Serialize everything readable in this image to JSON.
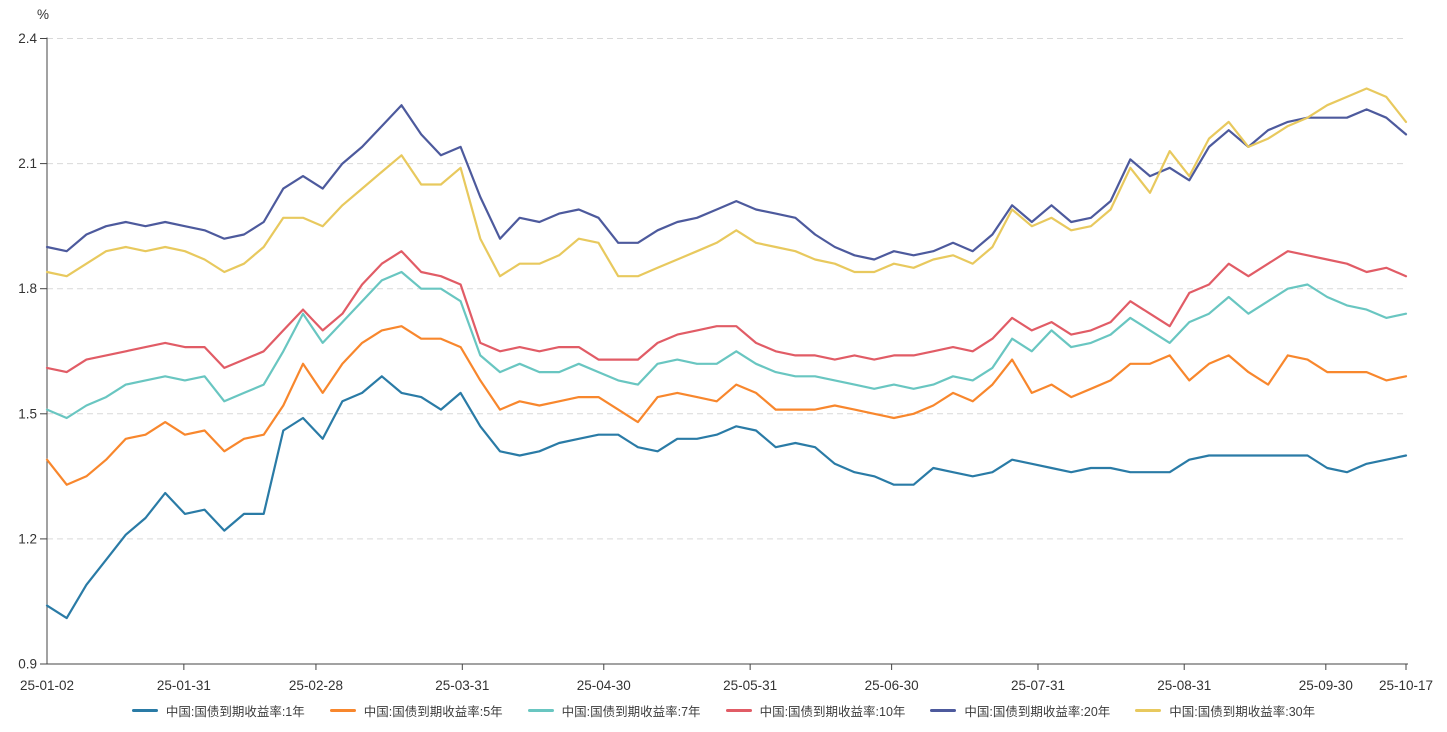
{
  "chart_data": {
    "type": "line",
    "title": "",
    "y_unit": "%",
    "ylim": [
      0.9,
      2.4
    ],
    "y_ticks": [
      "0.9",
      "1.2",
      "1.5",
      "1.8",
      "2.1",
      "2.4"
    ],
    "y_tick_values": [
      0.9,
      1.2,
      1.5,
      1.8,
      2.1,
      2.4
    ],
    "x_tick_labels": [
      "25-01-02",
      "25-01-31",
      "25-02-28",
      "25-03-31",
      "25-04-30",
      "25-05-31",
      "25-06-30",
      "25-07-31",
      "25-08-31",
      "25-09-30",
      "25-10-17"
    ],
    "x_tick_positions": [
      0,
      0.1007,
      0.1979,
      0.3056,
      0.4097,
      0.5174,
      0.6215,
      0.7292,
      0.8368,
      0.941,
      1.0
    ],
    "grid": "horizontal-dashed",
    "legend_position": "bottom",
    "style": {
      "axis_color": "#444444",
      "grid_color": "#d9d9d9",
      "tick_text_color": "#333333",
      "background": "#ffffff"
    },
    "series": [
      {
        "name": "中国:国债到期收益率:1年",
        "color": "#2a7ba6",
        "values": [
          1.04,
          1.01,
          1.09,
          1.15,
          1.21,
          1.25,
          1.31,
          1.26,
          1.27,
          1.22,
          1.26,
          1.26,
          1.46,
          1.49,
          1.44,
          1.53,
          1.55,
          1.59,
          1.55,
          1.54,
          1.51,
          1.55,
          1.47,
          1.41,
          1.4,
          1.41,
          1.43,
          1.44,
          1.45,
          1.45,
          1.42,
          1.41,
          1.44,
          1.44,
          1.45,
          1.47,
          1.46,
          1.42,
          1.43,
          1.42,
          1.38,
          1.36,
          1.35,
          1.33,
          1.33,
          1.37,
          1.36,
          1.35,
          1.36,
          1.39,
          1.38,
          1.37,
          1.36,
          1.37,
          1.37,
          1.36,
          1.36,
          1.36,
          1.39,
          1.4,
          1.4,
          1.4,
          1.4,
          1.4,
          1.4,
          1.37,
          1.36,
          1.38,
          1.39,
          1.4
        ]
      },
      {
        "name": "中国:国债到期收益率:5年",
        "color": "#f8872d",
        "values": [
          1.39,
          1.33,
          1.35,
          1.39,
          1.44,
          1.45,
          1.48,
          1.45,
          1.46,
          1.41,
          1.44,
          1.45,
          1.52,
          1.62,
          1.55,
          1.62,
          1.67,
          1.7,
          1.71,
          1.68,
          1.68,
          1.66,
          1.58,
          1.51,
          1.53,
          1.52,
          1.53,
          1.54,
          1.54,
          1.51,
          1.48,
          1.54,
          1.55,
          1.54,
          1.53,
          1.57,
          1.55,
          1.51,
          1.51,
          1.51,
          1.52,
          1.51,
          1.5,
          1.49,
          1.5,
          1.52,
          1.55,
          1.53,
          1.57,
          1.63,
          1.55,
          1.57,
          1.54,
          1.56,
          1.58,
          1.62,
          1.62,
          1.64,
          1.58,
          1.62,
          1.64,
          1.6,
          1.57,
          1.64,
          1.63,
          1.6,
          1.6,
          1.6,
          1.58,
          1.59
        ]
      },
      {
        "name": "中国:国债到期收益率:7年",
        "color": "#69c6c1",
        "values": [
          1.51,
          1.49,
          1.52,
          1.54,
          1.57,
          1.58,
          1.59,
          1.58,
          1.59,
          1.53,
          1.55,
          1.57,
          1.65,
          1.74,
          1.67,
          1.72,
          1.77,
          1.82,
          1.84,
          1.8,
          1.8,
          1.77,
          1.64,
          1.6,
          1.62,
          1.6,
          1.6,
          1.62,
          1.6,
          1.58,
          1.57,
          1.62,
          1.63,
          1.62,
          1.62,
          1.65,
          1.62,
          1.6,
          1.59,
          1.59,
          1.58,
          1.57,
          1.56,
          1.57,
          1.56,
          1.57,
          1.59,
          1.58,
          1.61,
          1.68,
          1.65,
          1.7,
          1.66,
          1.67,
          1.69,
          1.73,
          1.7,
          1.67,
          1.72,
          1.74,
          1.78,
          1.74,
          1.77,
          1.8,
          1.81,
          1.78,
          1.76,
          1.75,
          1.73,
          1.74
        ]
      },
      {
        "name": "中国:国债到期收益率:10年",
        "color": "#e15c66",
        "values": [
          1.61,
          1.6,
          1.63,
          1.64,
          1.65,
          1.66,
          1.67,
          1.66,
          1.66,
          1.61,
          1.63,
          1.65,
          1.7,
          1.75,
          1.7,
          1.74,
          1.81,
          1.86,
          1.89,
          1.84,
          1.83,
          1.81,
          1.67,
          1.65,
          1.66,
          1.65,
          1.66,
          1.66,
          1.63,
          1.63,
          1.63,
          1.67,
          1.69,
          1.7,
          1.71,
          1.71,
          1.67,
          1.65,
          1.64,
          1.64,
          1.63,
          1.64,
          1.63,
          1.64,
          1.64,
          1.65,
          1.66,
          1.65,
          1.68,
          1.73,
          1.7,
          1.72,
          1.69,
          1.7,
          1.72,
          1.77,
          1.74,
          1.71,
          1.79,
          1.81,
          1.86,
          1.83,
          1.86,
          1.89,
          1.88,
          1.87,
          1.86,
          1.84,
          1.85,
          1.83
        ]
      },
      {
        "name": "中国:国债到期收益率:20年",
        "color": "#4d5a9d",
        "values": [
          1.9,
          1.89,
          1.93,
          1.95,
          1.96,
          1.95,
          1.96,
          1.95,
          1.94,
          1.92,
          1.93,
          1.96,
          2.04,
          2.07,
          2.04,
          2.1,
          2.14,
          2.19,
          2.24,
          2.17,
          2.12,
          2.14,
          2.02,
          1.92,
          1.97,
          1.96,
          1.98,
          1.99,
          1.97,
          1.91,
          1.91,
          1.94,
          1.96,
          1.97,
          1.99,
          2.01,
          1.99,
          1.98,
          1.97,
          1.93,
          1.9,
          1.88,
          1.87,
          1.89,
          1.88,
          1.89,
          1.91,
          1.89,
          1.93,
          2.0,
          1.96,
          2.0,
          1.96,
          1.97,
          2.01,
          2.11,
          2.07,
          2.09,
          2.06,
          2.14,
          2.18,
          2.14,
          2.18,
          2.2,
          2.21,
          2.21,
          2.21,
          2.23,
          2.21,
          2.17
        ]
      },
      {
        "name": "中国:国债到期收益率:30年",
        "color": "#e8c95e",
        "values": [
          1.84,
          1.83,
          1.86,
          1.89,
          1.9,
          1.89,
          1.9,
          1.89,
          1.87,
          1.84,
          1.86,
          1.9,
          1.97,
          1.97,
          1.95,
          2.0,
          2.04,
          2.08,
          2.12,
          2.05,
          2.05,
          2.09,
          1.92,
          1.83,
          1.86,
          1.86,
          1.88,
          1.92,
          1.91,
          1.83,
          1.83,
          1.85,
          1.87,
          1.89,
          1.91,
          1.94,
          1.91,
          1.9,
          1.89,
          1.87,
          1.86,
          1.84,
          1.84,
          1.86,
          1.85,
          1.87,
          1.88,
          1.86,
          1.9,
          1.99,
          1.95,
          1.97,
          1.94,
          1.95,
          1.99,
          2.09,
          2.03,
          2.13,
          2.07,
          2.16,
          2.2,
          2.14,
          2.16,
          2.19,
          2.21,
          2.24,
          2.26,
          2.28,
          2.26,
          2.2
        ]
      }
    ]
  }
}
